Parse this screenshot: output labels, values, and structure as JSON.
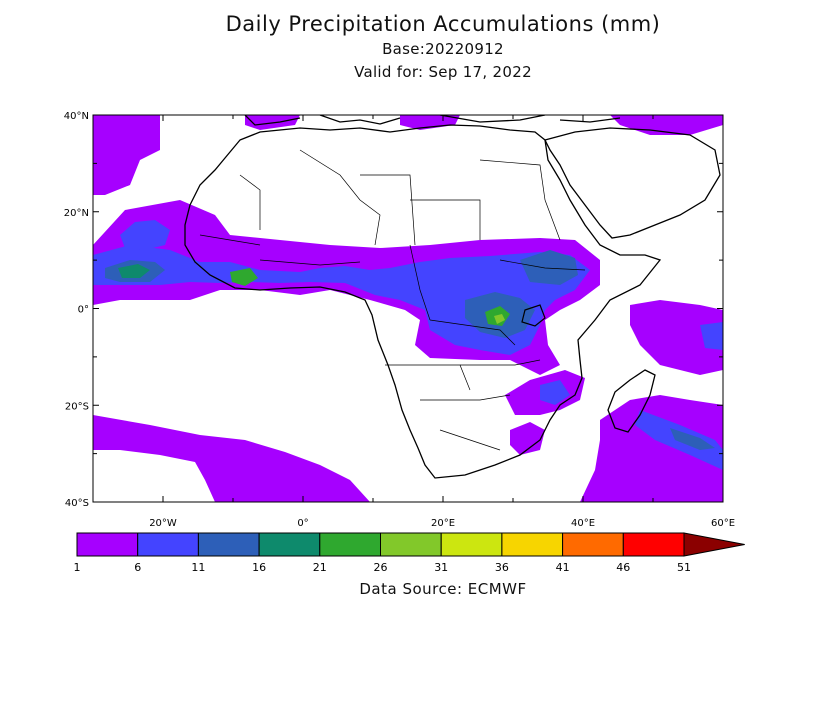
{
  "title": "Daily Precipitation Accumulations (mm)",
  "base_line": "Base:20220912",
  "valid_line": "Valid for: Sep 17, 2022",
  "source": "Data Source: ECMWF",
  "map": {
    "lon_range": [
      -30,
      60
    ],
    "lat_range": [
      -40,
      40
    ],
    "lon_ticks": [
      {
        "value": -20,
        "label": "20°W"
      },
      {
        "value": 0,
        "label": "0°"
      },
      {
        "value": 20,
        "label": "20°E"
      },
      {
        "value": 40,
        "label": "40°E"
      },
      {
        "value": 60,
        "label": "60°E"
      }
    ],
    "lat_ticks": [
      {
        "value": 40,
        "label": "40°N"
      },
      {
        "value": 20,
        "label": "20°N"
      },
      {
        "value": 0,
        "label": "0°"
      },
      {
        "value": -20,
        "label": "20°S"
      },
      {
        "value": -40,
        "label": "40°S"
      }
    ]
  },
  "colorbar": {
    "labels": [
      "1",
      "6",
      "11",
      "16",
      "21",
      "26",
      "31",
      "36",
      "41",
      "46",
      "51"
    ],
    "colors": [
      "#a600ff",
      "#4444ff",
      "#2d5fb8",
      "#0e8a6c",
      "#2fa82f",
      "#82c82a",
      "#cce610",
      "#f7d500",
      "#ff6a00",
      "#ff0000",
      "#8b0000"
    ]
  },
  "colors": {
    "land_border": "#000000",
    "ocean": "#ffffff"
  }
}
